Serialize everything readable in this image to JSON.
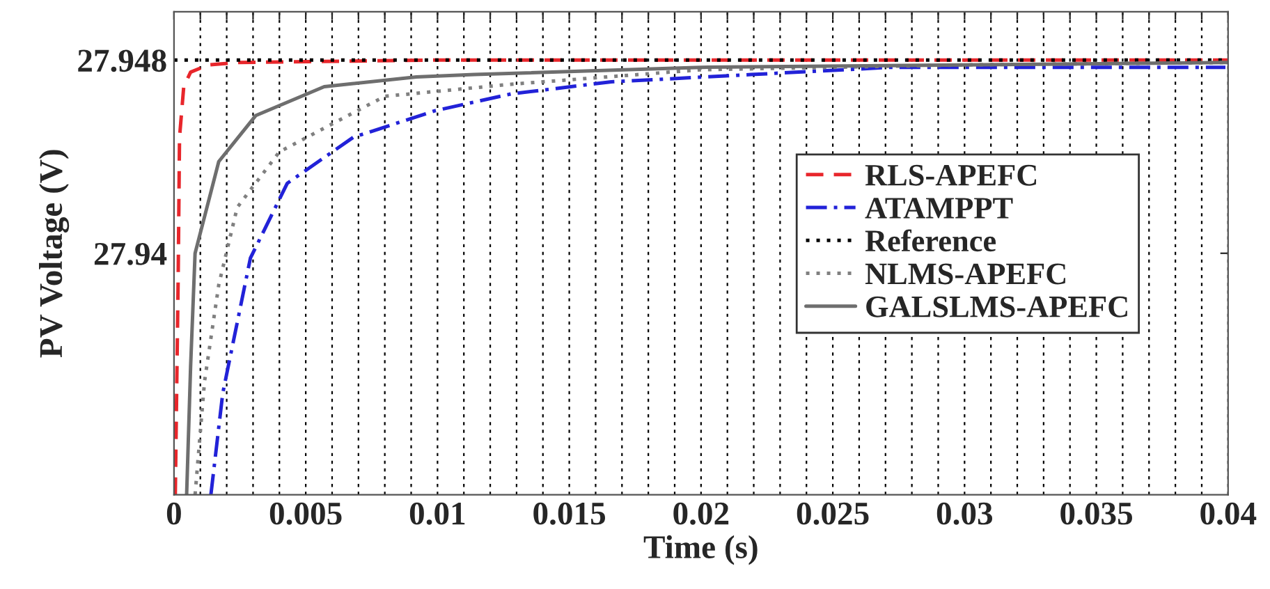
{
  "chart_data": {
    "type": "line",
    "xlabel": "Time (s)",
    "ylabel": "PV Voltage (V)",
    "xlim": [
      0,
      0.04
    ],
    "ylim": [
      27.93,
      27.95
    ],
    "xticks": [
      0,
      {
        "value": 0.001,
        "label": null
      },
      {
        "value": 0.002,
        "label": null
      },
      {
        "value": 0.003,
        "label": null
      },
      {
        "value": 0.004,
        "label": null
      },
      0.005,
      {
        "value": 0.006,
        "label": null
      },
      {
        "value": 0.007,
        "label": null
      },
      {
        "value": 0.008,
        "label": null
      },
      {
        "value": 0.009,
        "label": null
      },
      0.01,
      {
        "value": 0.011,
        "label": null
      },
      {
        "value": 0.012,
        "label": null
      },
      {
        "value": 0.013,
        "label": null
      },
      {
        "value": 0.014,
        "label": null
      },
      0.015,
      {
        "value": 0.016,
        "label": null
      },
      {
        "value": 0.017,
        "label": null
      },
      {
        "value": 0.018,
        "label": null
      },
      {
        "value": 0.019,
        "label": null
      },
      0.02,
      {
        "value": 0.021,
        "label": null
      },
      {
        "value": 0.022,
        "label": null
      },
      {
        "value": 0.023,
        "label": null
      },
      {
        "value": 0.024,
        "label": null
      },
      0.025,
      {
        "value": 0.026,
        "label": null
      },
      {
        "value": 0.027,
        "label": null
      },
      {
        "value": 0.028,
        "label": null
      },
      {
        "value": 0.029,
        "label": null
      },
      0.03,
      {
        "value": 0.031,
        "label": null
      },
      {
        "value": 0.032,
        "label": null
      },
      {
        "value": 0.033,
        "label": null
      },
      {
        "value": 0.034,
        "label": null
      },
      0.035,
      {
        "value": 0.036,
        "label": null
      },
      {
        "value": 0.037,
        "label": null
      },
      {
        "value": 0.038,
        "label": null
      },
      {
        "value": 0.039,
        "label": null
      },
      0.04
    ],
    "yticks": [
      27.94,
      27.948
    ],
    "grid": "x",
    "legend": "right",
    "series": [
      {
        "name": "RLS-APEFC",
        "color": "#e8262b",
        "line_style": "dashed",
        "x": [
          5e-05,
          0.00016,
          0.00021,
          0.00037,
          0.00063,
          0.0013,
          0.0024,
          0.01,
          0.02,
          0.03,
          0.04
        ],
        "values": [
          27.93,
          27.9391,
          27.9448,
          27.9469,
          27.9475,
          27.9478,
          27.9479,
          27.948,
          27.948,
          27.948,
          27.948
        ]
      },
      {
        "name": "ATAMPPT",
        "color": "#2222d8",
        "line_style": "dashdot",
        "x": [
          0.0014,
          0.00185,
          0.0029,
          0.0043,
          0.0068,
          0.0099,
          0.0128,
          0.0166,
          0.0219,
          0.0272,
          0.0399
        ],
        "values": [
          27.93,
          27.9342,
          27.9398,
          27.9429,
          27.9448,
          27.9459,
          27.9466,
          27.9471,
          27.9474,
          27.9477,
          27.9477
        ]
      },
      {
        "name": "Reference",
        "color": "#000000",
        "line_style": "dotted",
        "x": [
          0,
          0.04
        ],
        "values": [
          27.948,
          27.948
        ]
      },
      {
        "name": "NLMS-APEFC",
        "color": "#808080",
        "line_style": "dotted",
        "x": [
          0.0008,
          0.00116,
          0.0017,
          0.0024,
          0.004,
          0.0066,
          0.008,
          0.0128,
          0.02,
          0.03,
          0.04
        ],
        "values": [
          27.93,
          27.9347,
          27.9387,
          27.9419,
          27.9442,
          27.9457,
          27.9465,
          27.947,
          27.9476,
          27.9478,
          27.9479
        ]
      },
      {
        "name": "GALSLMS-APEFC",
        "color": "#6e6e6e",
        "line_style": "solid",
        "x": [
          0.00048,
          0.00063,
          0.0008,
          0.0017,
          0.0031,
          0.0057,
          0.0092,
          0.0114,
          0.02,
          0.03,
          0.04
        ],
        "values": [
          27.93,
          27.9353,
          27.94,
          27.9438,
          27.9457,
          27.9469,
          27.9473,
          27.9474,
          27.9477,
          27.9478,
          27.9479
        ]
      }
    ]
  }
}
